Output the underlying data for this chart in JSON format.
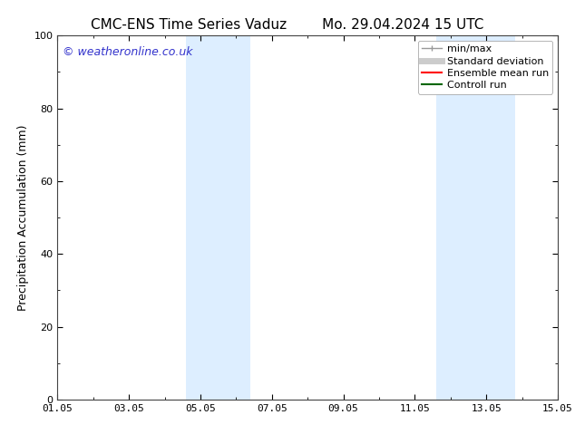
{
  "title_left": "CMC-ENS Time Series Vaduz",
  "title_right": "Mo. 29.04.2024 15 UTC",
  "ylabel": "Precipitation Accumulation (mm)",
  "watermark": "© weatheronline.co.uk",
  "ylim": [
    0,
    100
  ],
  "xlim": [
    0,
    14
  ],
  "xtick_labels": [
    "01.05",
    "03.05",
    "05.05",
    "07.05",
    "09.05",
    "11.05",
    "13.05",
    "15.05"
  ],
  "xtick_positions": [
    0,
    2,
    4,
    6,
    8,
    10,
    12,
    14
  ],
  "ytick_positions": [
    0,
    20,
    40,
    60,
    80,
    100
  ],
  "shaded_bands": [
    {
      "x_start": 3.6,
      "x_end": 5.4
    },
    {
      "x_start": 10.6,
      "x_end": 12.8
    }
  ],
  "shade_color": "#ddeeff",
  "background_color": "#ffffff",
  "legend_entries": [
    {
      "label": "min/max",
      "color": "#999999",
      "linewidth": 1.0,
      "type": "line_with_caps"
    },
    {
      "label": "Standard deviation",
      "color": "#cccccc",
      "linewidth": 5,
      "type": "thick_line"
    },
    {
      "label": "Ensemble mean run",
      "color": "#ff0000",
      "linewidth": 1.5,
      "type": "line"
    },
    {
      "label": "Controll run",
      "color": "#006600",
      "linewidth": 1.5,
      "type": "line"
    }
  ],
  "title_fontsize": 11,
  "watermark_color": "#3333cc",
  "watermark_fontsize": 9,
  "axis_label_fontsize": 9,
  "tick_fontsize": 8,
  "legend_fontsize": 8
}
